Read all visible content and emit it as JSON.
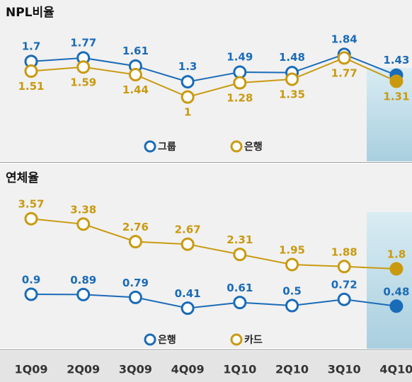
{
  "chart_data": [
    {
      "type": "line",
      "title": "NPL비율",
      "ylim": [
        0.5,
        2.2
      ],
      "series": [
        {
          "name": "그룹",
          "color": "#1a6bb8",
          "values": [
            1.7,
            1.77,
            1.61,
            1.3,
            1.49,
            1.48,
            1.84,
            1.43
          ]
        },
        {
          "name": "은행",
          "color": "#c99a10",
          "values": [
            1.51,
            1.59,
            1.44,
            1.0,
            1.28,
            1.35,
            1.77,
            1.31
          ]
        }
      ]
    },
    {
      "type": "line",
      "title": "연체율",
      "ylim": [
        0,
        4
      ],
      "categories": [
        "1Q09",
        "2Q09",
        "3Q09",
        "4Q09",
        "1Q10",
        "2Q10",
        "3Q10",
        "4Q10"
      ],
      "series": [
        {
          "name": "은행",
          "color": "#1a6bb8",
          "values": [
            0.9,
            0.89,
            0.79,
            0.41,
            0.61,
            0.5,
            0.72,
            0.48
          ]
        },
        {
          "name": "카드",
          "color": "#c99a10",
          "values": [
            3.57,
            3.38,
            2.76,
            2.67,
            2.31,
            1.95,
            1.88,
            1.8
          ]
        }
      ]
    }
  ]
}
